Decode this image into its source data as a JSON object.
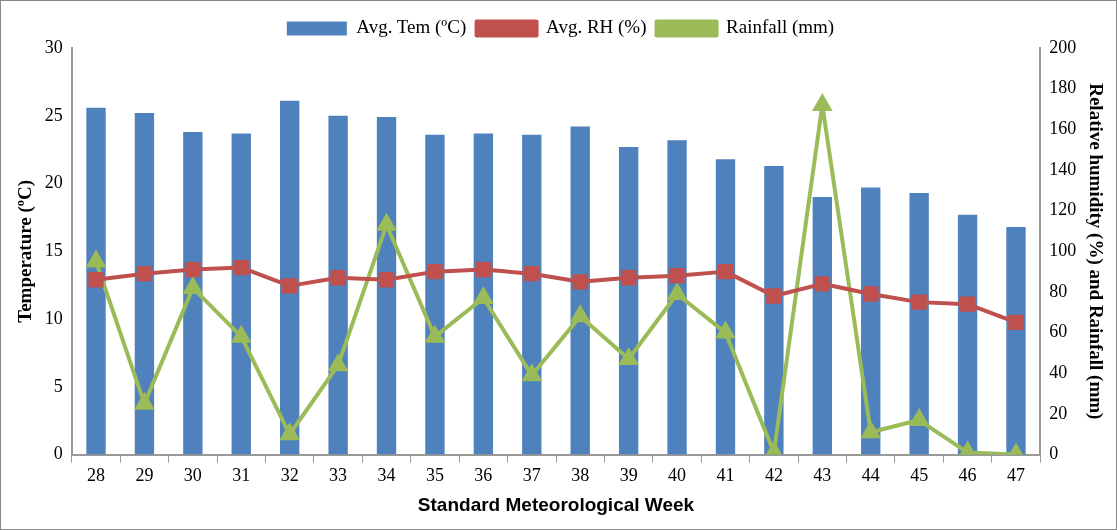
{
  "chart_data": {
    "type": "bar",
    "xlabel": "Standard Meteorological Week",
    "ylabel": "Temperature (ºC)",
    "y2label": "Relative humidity (%) and Rainfall (mm)",
    "categories": [
      "28",
      "29",
      "30",
      "31",
      "32",
      "33",
      "34",
      "35",
      "36",
      "37",
      "38",
      "39",
      "40",
      "41",
      "42",
      "43",
      "44",
      "45",
      "46",
      "47"
    ],
    "series": [
      {
        "name": "Avg. Tem (ºC)",
        "color": "#4f81bd",
        "values": [
          25.6,
          25.2,
          23.8,
          23.7,
          26.1,
          25.0,
          24.9,
          23.6,
          23.7,
          23.6,
          24.2,
          22.7,
          23.2,
          21.8,
          21.3,
          19.0,
          19.7,
          19.3,
          17.7,
          16.8
        ]
      },
      {
        "name": "Avg. RH (%)",
        "type": "line",
        "axis": "y2",
        "color": "#c0504d",
        "marker": "square",
        "values": [
          86,
          89,
          91,
          92,
          83,
          87,
          86,
          90,
          91,
          89,
          85,
          87,
          88,
          90,
          78,
          84,
          79,
          75,
          74,
          65
        ]
      },
      {
        "name": "Rainfall (mm)",
        "type": "line",
        "axis": "y2",
        "color": "#9bbb59",
        "marker": "triangle",
        "values": [
          95,
          25,
          82,
          58,
          10,
          44,
          113,
          58,
          77,
          39,
          68,
          47,
          79,
          60,
          1,
          172,
          11,
          17,
          1,
          0
        ]
      }
    ],
    "ylim": [
      0,
      30
    ],
    "yticks": [
      0,
      5,
      10,
      15,
      20,
      25,
      30
    ],
    "y2lim": [
      0,
      200
    ],
    "y2ticks": [
      0,
      20,
      40,
      60,
      80,
      100,
      120,
      140,
      160,
      180,
      200
    ],
    "grid": false,
    "legend": "top"
  }
}
